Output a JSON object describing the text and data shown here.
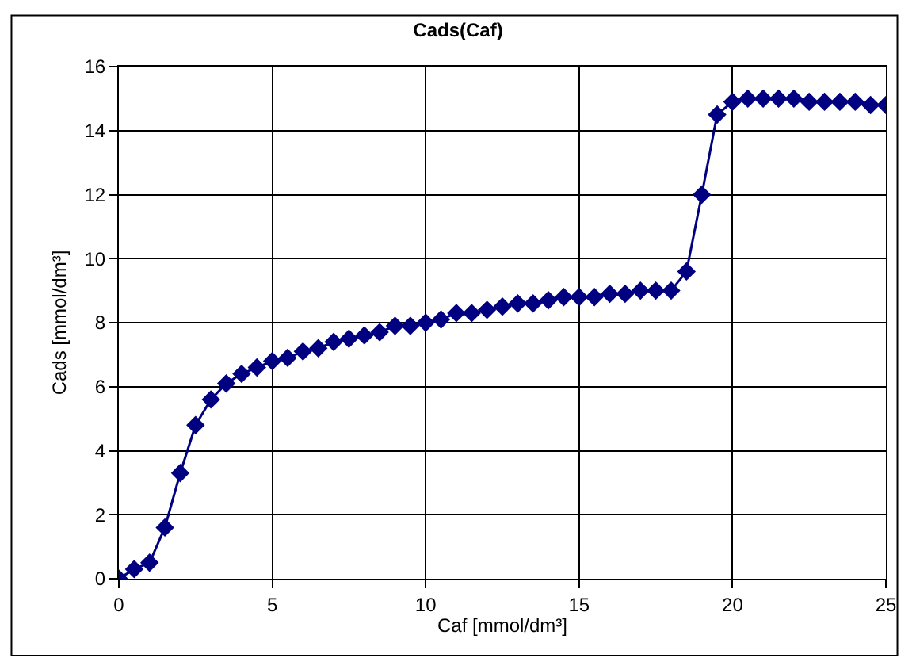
{
  "chart_data": {
    "type": "line",
    "title": "Cads(Caf)",
    "xlabel": "Caf [mmol/dm³]",
    "ylabel": "Cads [mmol/dm³]",
    "x": [
      0,
      0.5,
      1,
      1.5,
      2,
      2.5,
      3,
      3.5,
      4,
      4.5,
      5,
      5.5,
      6,
      6.5,
      7,
      7.5,
      8,
      8.5,
      9,
      9.5,
      10,
      10.5,
      11,
      11.5,
      12,
      12.5,
      13,
      13.5,
      14,
      14.5,
      15,
      15.5,
      16,
      16.5,
      17,
      17.5,
      18,
      18.5,
      19,
      19.5,
      20,
      20.5,
      21,
      21.5,
      22,
      22.5,
      23,
      23.5,
      24,
      24.5,
      25
    ],
    "series": [
      {
        "color": "#000080",
        "values": [
          0,
          0.3,
          0.5,
          1.6,
          3.3,
          4.8,
          5.6,
          6.1,
          6.4,
          6.6,
          6.8,
          6.9,
          7.1,
          7.2,
          7.4,
          7.5,
          7.6,
          7.7,
          7.9,
          7.9,
          8.0,
          8.1,
          8.3,
          8.3,
          8.4,
          8.5,
          8.6,
          8.6,
          8.7,
          8.8,
          8.8,
          8.8,
          8.9,
          8.9,
          9.0,
          9.0,
          9.0,
          9.6,
          12.0,
          14.5,
          14.9,
          15.0,
          15.0,
          15.0,
          15.0,
          14.9,
          14.9,
          14.9,
          14.9,
          14.8,
          14.8
        ]
      }
    ],
    "xlim": [
      0,
      25
    ],
    "xticks": [
      0,
      5,
      10,
      15,
      20,
      25
    ],
    "ylim": [
      0,
      16
    ],
    "yticks": [
      0,
      2,
      4,
      6,
      8,
      10,
      12,
      14,
      16
    ],
    "grid": true,
    "marker": "diamond",
    "line_style": "solid"
  }
}
